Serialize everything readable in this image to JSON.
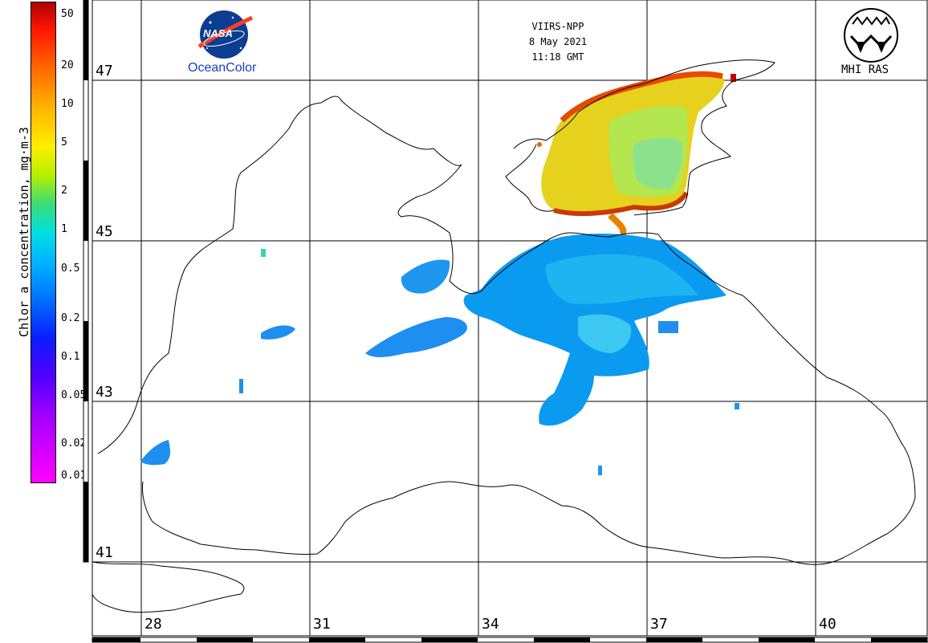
{
  "header": {
    "satellite": "VIIRS-NPP",
    "date": "8 May 2021",
    "time": "11:18 GMT"
  },
  "logos": {
    "left_badge": "NASA",
    "left_caption": "OceanColor",
    "right_caption": "MHI RAS"
  },
  "colorbar": {
    "title": "Chlor_a concentration, mg·m-3",
    "labels": [
      "50",
      "20",
      "10",
      "5",
      "2",
      "1",
      "0.5",
      "0.2",
      "0.1",
      "0.05",
      "0.02",
      "0.01"
    ]
  },
  "axes": {
    "latitudes": [
      "47",
      "45",
      "43",
      "41"
    ],
    "longitudes": [
      "28",
      "31",
      "34",
      "37",
      "40"
    ]
  },
  "colors": {
    "low": "#ff00ff",
    "mid": "#00b4ff",
    "high": "#b00000"
  }
}
